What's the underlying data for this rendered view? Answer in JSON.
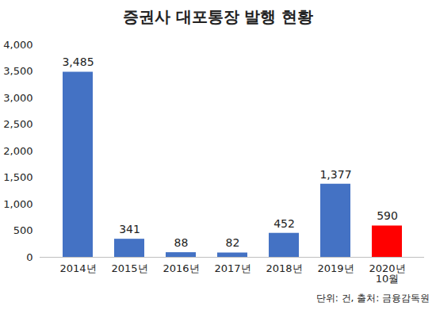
{
  "chart_data": {
    "type": "bar",
    "title": "증권사 대포통장 발행 현황",
    "caption": "단위: 건, 출처: 금융감독원",
    "categories": [
      "2014년",
      "2015년",
      "2016년",
      "2017년",
      "2018년",
      "2019년",
      "2020년\n10월"
    ],
    "values": [
      3485,
      341,
      88,
      82,
      452,
      1377,
      590
    ],
    "value_labels": [
      "3,485",
      "341",
      "88",
      "82",
      "452",
      "1,377",
      "590"
    ],
    "colors": [
      "#4472c4",
      "#4472c4",
      "#4472c4",
      "#4472c4",
      "#4472c4",
      "#4472c4",
      "#ff0000"
    ],
    "ylim": [
      0,
      4000
    ],
    "yticks": [
      0,
      500,
      {
        "value": 1000,
        "label": "1,000"
      },
      {
        "value": 1500,
        "label": "1,500"
      },
      {
        "value": 2000,
        "label": "2,000"
      },
      {
        "value": 2500,
        "label": "2,500"
      },
      {
        "value": 3000,
        "label": "3,000"
      },
      {
        "value": 3500,
        "label": "3,500"
      },
      {
        "value": 4000,
        "label": "4,000"
      }
    ],
    "grid": false,
    "data_labels": true
  }
}
